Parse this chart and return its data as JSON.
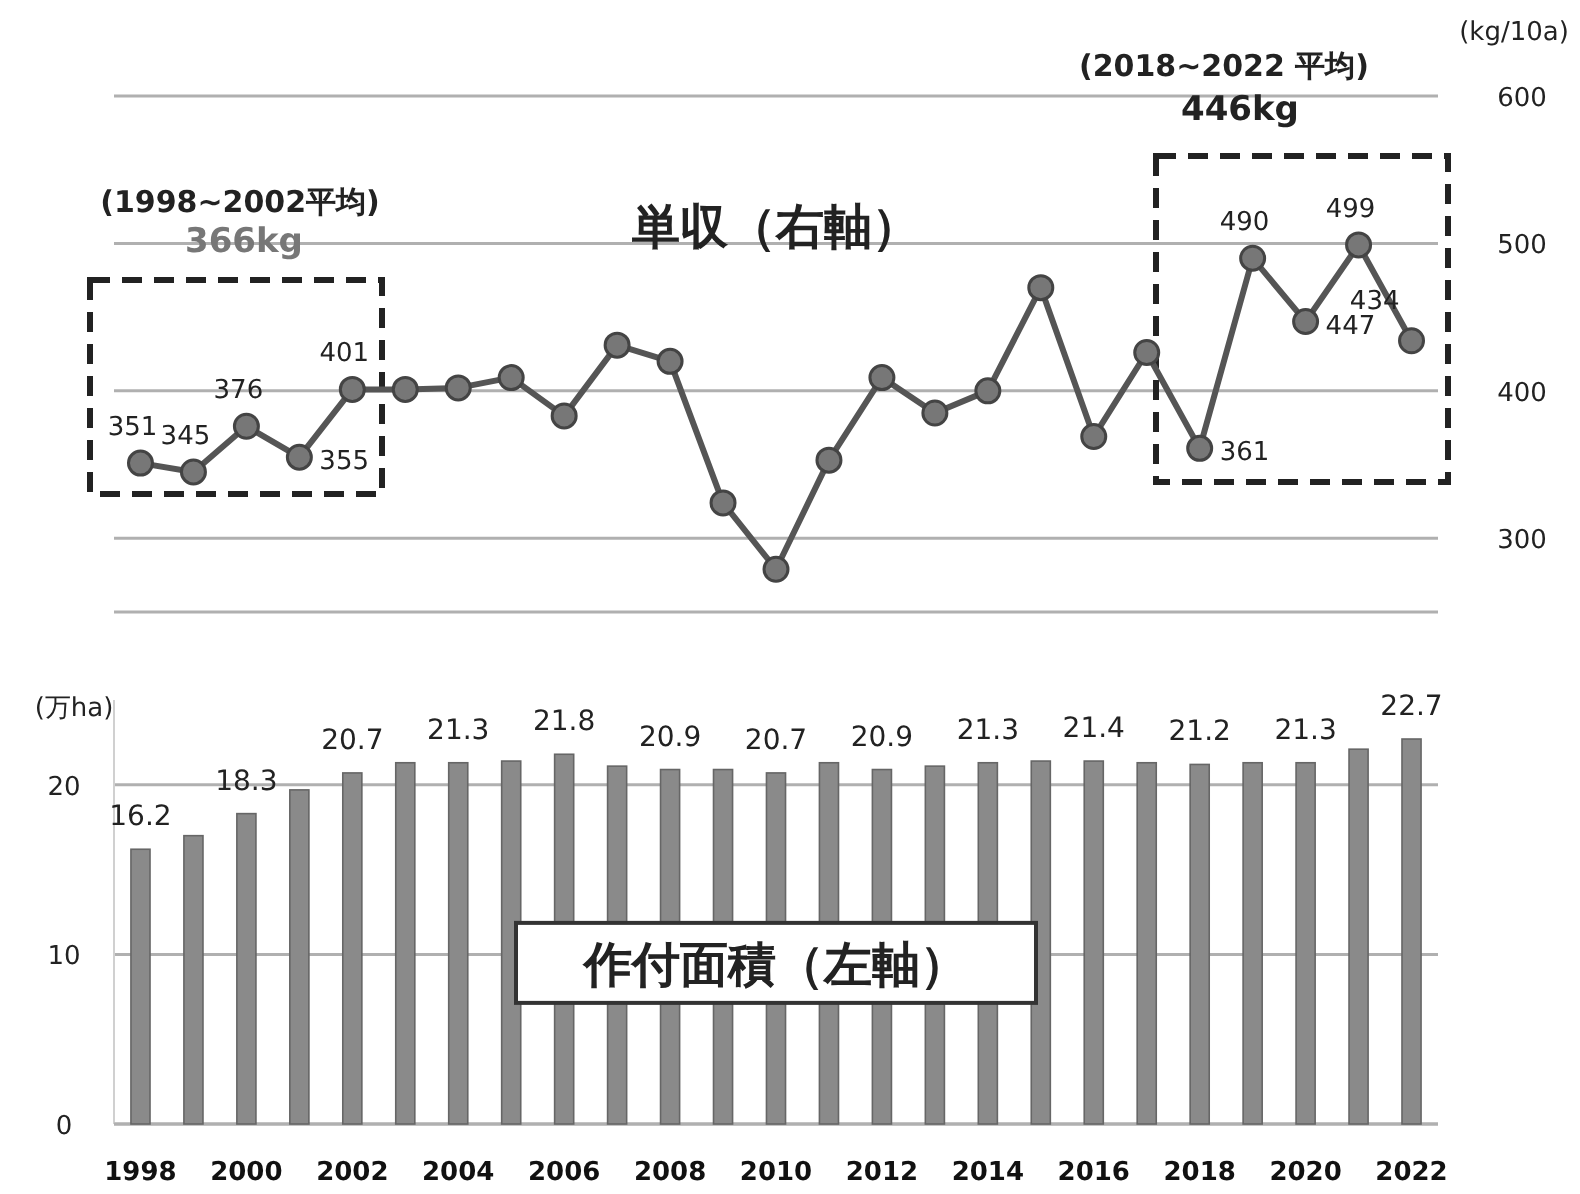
{
  "chart_data": [
    {
      "type": "line",
      "x": [
        1998,
        1999,
        2000,
        2001,
        2002,
        2003,
        2004,
        2005,
        2006,
        2007,
        2008,
        2009,
        2010,
        2011,
        2012,
        2013,
        2014,
        2015,
        2016,
        2017,
        2018,
        2019,
        2020,
        2021,
        2022
      ],
      "series": [
        {
          "name": "単収（右軸）",
          "color": "#555555",
          "values": [
            351,
            345,
            376,
            355,
            401,
            401,
            402,
            409,
            383,
            431,
            420,
            324,
            279,
            353,
            409,
            385,
            400,
            470,
            369,
            426,
            361,
            490,
            447,
            499,
            434
          ],
          "value_labels": [
            "351",
            "345",
            "376",
            "355",
            "401",
            null,
            null,
            null,
            null,
            null,
            null,
            null,
            null,
            null,
            null,
            null,
            null,
            null,
            null,
            null,
            "361",
            "490",
            "447",
            "499",
            "434"
          ]
        }
      ],
      "xlim": [
        1997.5,
        2022.5
      ],
      "ylim": [
        250,
        600
      ],
      "yticks": [
        300,
        400,
        500,
        600
      ],
      "ylabel": "(kg/10a)",
      "tick_labels": "y",
      "grid": "y",
      "marker": "circle",
      "annotations": [
        "(1998~2002平均)",
        "366kg",
        "(2018~2022  平均)",
        "446kg"
      ]
    },
    {
      "type": "bar",
      "x": [
        1998,
        1999,
        2000,
        2001,
        2002,
        2003,
        2004,
        2005,
        2006,
        2007,
        2008,
        2009,
        2010,
        2011,
        2012,
        2013,
        2014,
        2015,
        2016,
        2017,
        2018,
        2019,
        2020,
        2021,
        2022
      ],
      "series": [
        {
          "name": "作付面積（左軸）",
          "color": "#8a8a8a",
          "values": [
            16.2,
            17.0,
            18.3,
            19.7,
            20.7,
            21.3,
            21.3,
            21.4,
            21.8,
            21.1,
            20.9,
            20.9,
            20.7,
            21.3,
            20.9,
            21.1,
            21.3,
            21.4,
            21.4,
            21.3,
            21.2,
            21.3,
            21.3,
            22.1,
            22.7
          ],
          "value_labels": [
            "16.2",
            null,
            "18.3",
            null,
            "20.7",
            null,
            "21.3",
            null,
            "21.8",
            null,
            "20.9",
            null,
            "20.7",
            null,
            "20.9",
            null,
            "21.3",
            null,
            "21.4",
            null,
            "21.2",
            null,
            "21.3",
            null,
            "22.7"
          ]
        }
      ],
      "xlim": [
        1997.5,
        2022.5
      ],
      "xticks": [
        1998,
        2000,
        2002,
        2004,
        2006,
        2008,
        2010,
        2012,
        2014,
        2016,
        2018,
        2020,
        2022
      ],
      "ylim": [
        0,
        25
      ],
      "yticks": [
        0,
        10,
        20
      ],
      "ylabel": "(万ha)",
      "grid": "y"
    }
  ]
}
